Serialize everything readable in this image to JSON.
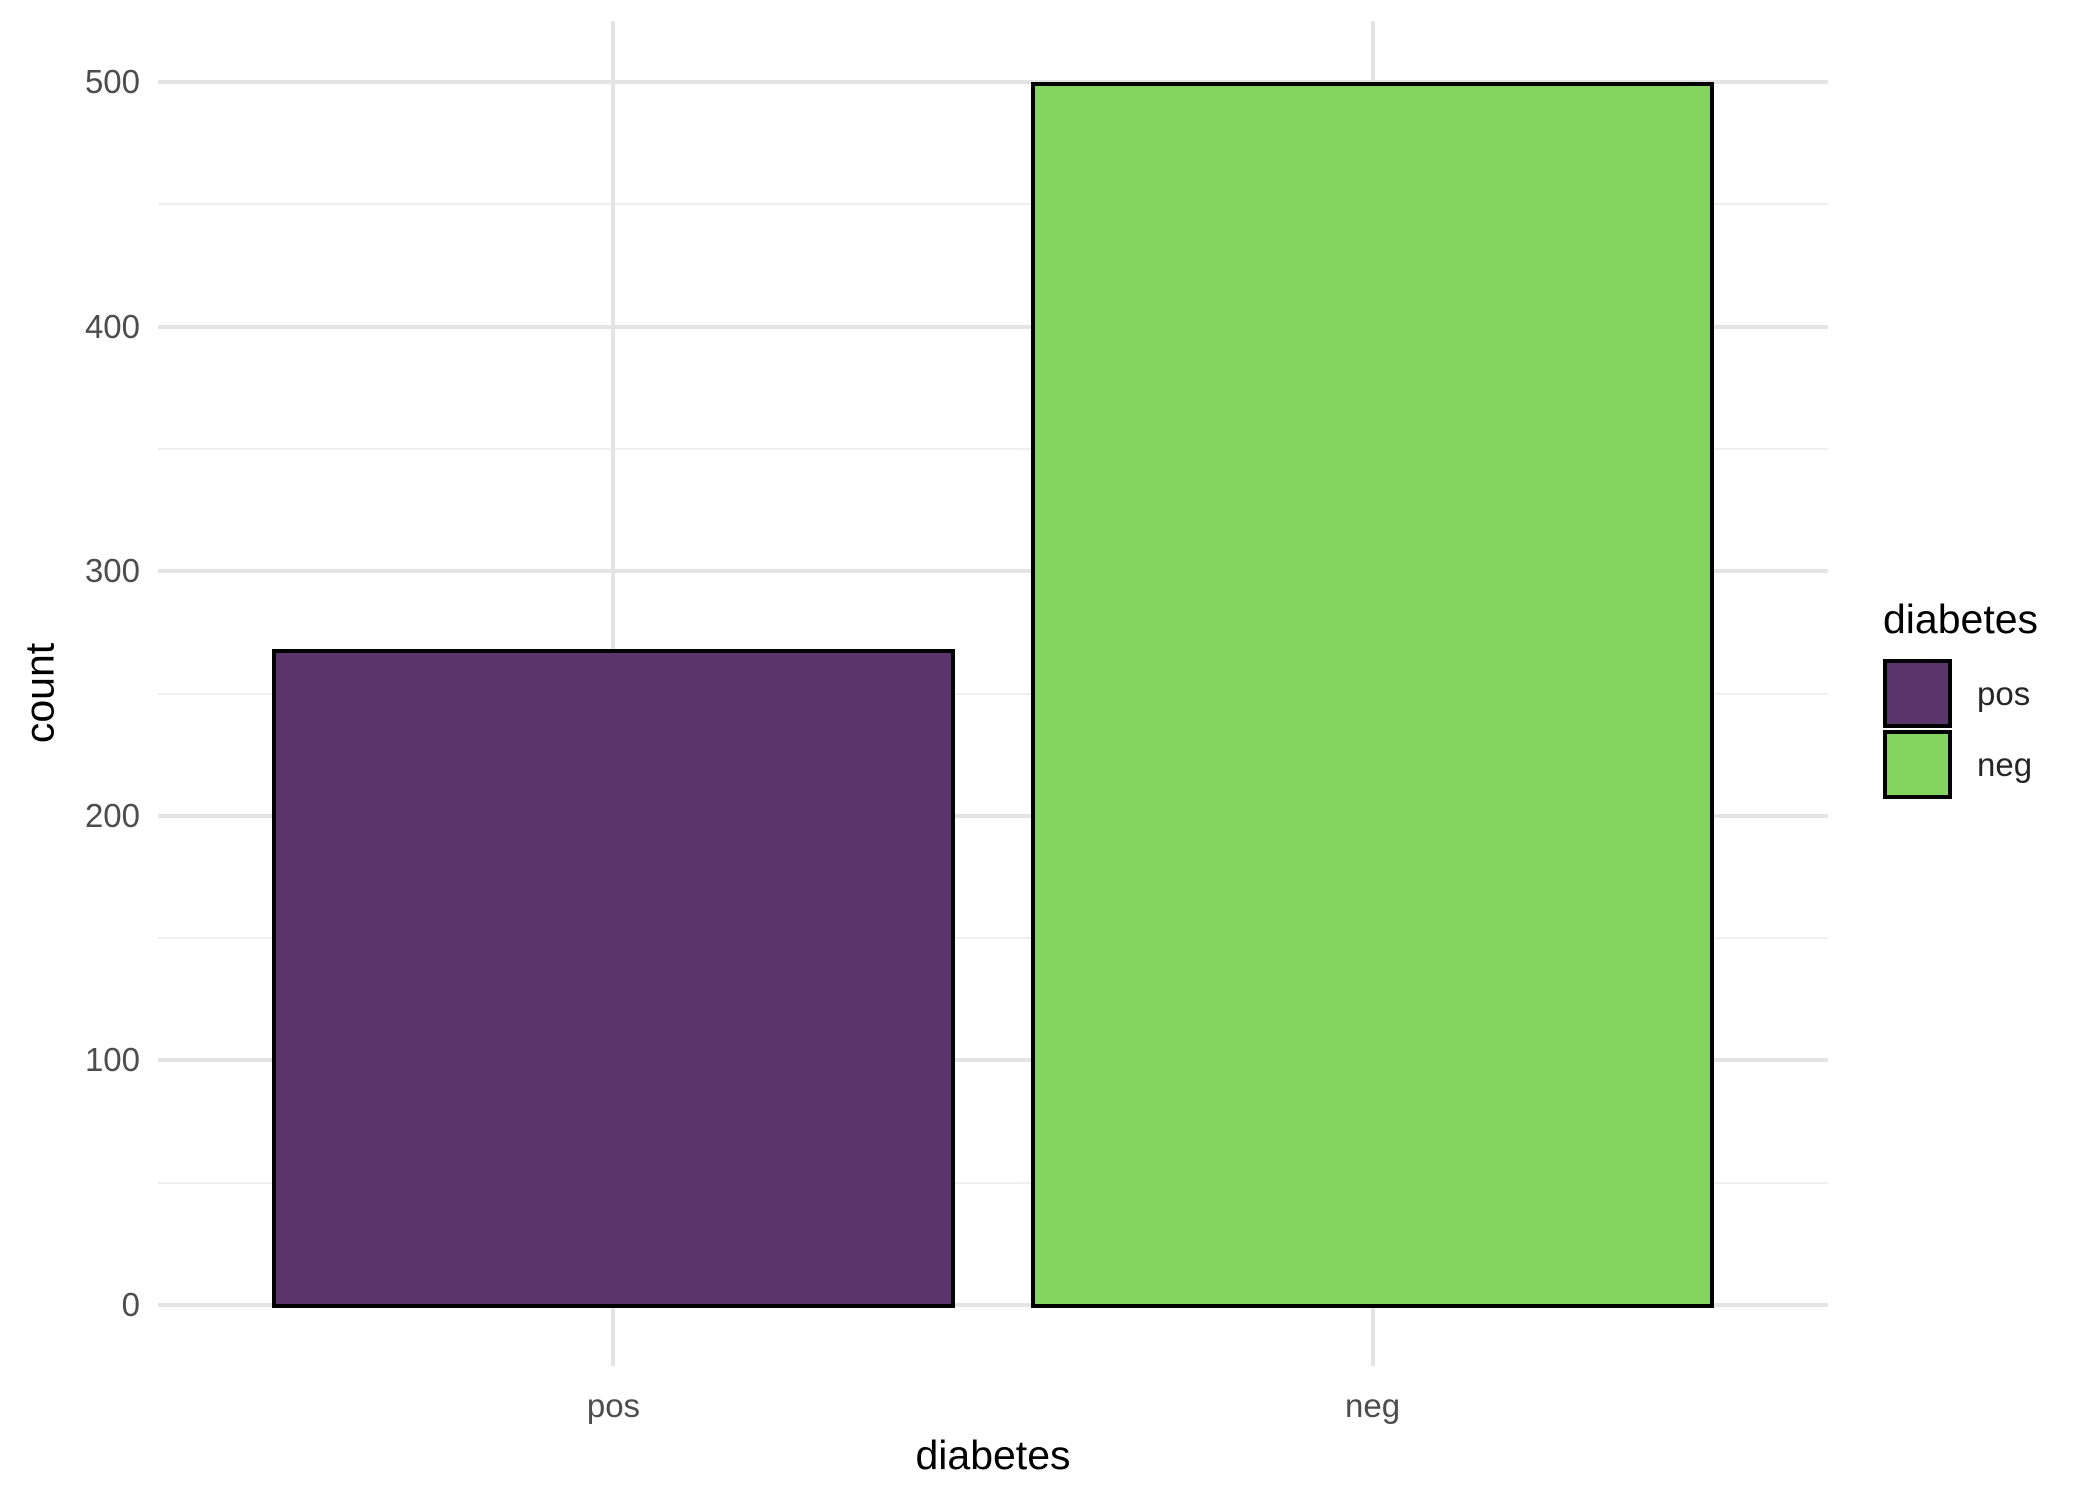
{
  "chart_data": {
    "type": "bar",
    "title": "",
    "xlabel": "diabetes",
    "ylabel": "count",
    "categories": [
      "pos",
      "neg"
    ],
    "values": [
      268,
      500
    ],
    "colors": {
      "pos": "#5a356b",
      "neg": "#84d560"
    },
    "bar_border_color": "#000000",
    "ylim": [
      0,
      525
    ],
    "yticks": [
      0,
      100,
      200,
      300,
      400,
      500
    ],
    "grid": "major and minor horizontal, major vertical at category centers",
    "grid_color_major": "#e4e4e4",
    "grid_color_minor": "#efefef",
    "background": "#ffffff",
    "legend": {
      "position": "right",
      "title": "diabetes",
      "entries": [
        {
          "label": "pos"
        },
        {
          "label": "neg"
        }
      ]
    }
  }
}
